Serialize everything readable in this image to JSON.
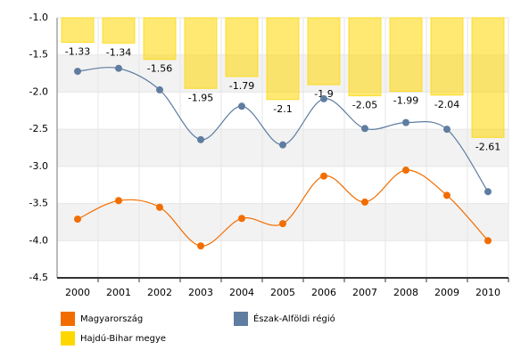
{
  "chart_data": {
    "type": "combo",
    "categories": [
      "2000",
      "2001",
      "2002",
      "2003",
      "2004",
      "2005",
      "2006",
      "2007",
      "2008",
      "2009",
      "2010"
    ],
    "series": [
      {
        "name": "Magyarország",
        "type": "line",
        "color": "#f26d00",
        "values": [
          -3.71,
          -3.46,
          -3.55,
          -4.07,
          -3.7,
          -3.77,
          -3.13,
          -3.48,
          -3.05,
          -3.39,
          -4.0
        ]
      },
      {
        "name": "Észak-Alföldi régió",
        "type": "line",
        "color": "#5f7da0",
        "values": [
          -1.72,
          -1.68,
          -1.97,
          -2.64,
          -2.19,
          -2.71,
          -2.09,
          -2.49,
          -2.41,
          -2.5,
          -3.34
        ]
      },
      {
        "name": "Hajdú-Bihar megye",
        "type": "bar",
        "color": "#ffd700",
        "values": [
          -1.33,
          -1.34,
          -1.56,
          -1.95,
          -1.79,
          -2.1,
          -1.9,
          -2.05,
          -1.99,
          -2.04,
          -2.61
        ]
      }
    ],
    "ylim": [
      -4.5,
      -1.0
    ],
    "yticks": [
      {
        "value": -1.0,
        "label": "-1.0"
      },
      -1.5,
      {
        "value": -2.0,
        "label": "-2.0"
      },
      -2.5,
      {
        "value": -3.0,
        "label": "-3.0"
      },
      -3.5,
      {
        "value": -4.0,
        "label": "-4.0"
      },
      -4.5
    ],
    "bands": true
  }
}
